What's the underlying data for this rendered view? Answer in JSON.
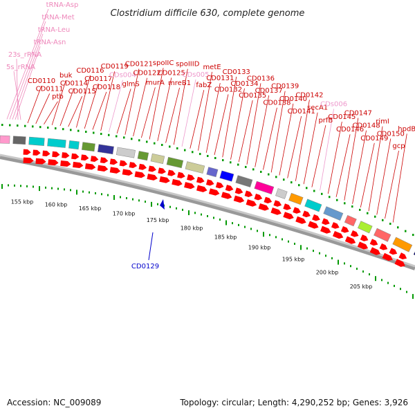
{
  "title": "Clostridium difficile 630, complete genome",
  "footer": {
    "accession": "Accession: NC_009089",
    "summary": "Topology: circular; Length: 4,290,252 bp; Genes: 3,926"
  },
  "colors": {
    "cds": "#ff0000",
    "cds_label": "#cc0000",
    "rna_label": "#ee88bb",
    "pseudo_label": "#ee99cc",
    "minus_label": "#0000cc",
    "scale_tick": "#009900"
  },
  "kbp_labels": [
    "155 kbp",
    "160 kbp",
    "165 kbp",
    "170 kbp",
    "175 kbp",
    "180 kbp",
    "185 kbp",
    "190 kbp",
    "195 kbp",
    "200 kbp",
    "205 kbp"
  ],
  "gene_labels": [
    {
      "text": "tRNA-Asp",
      "kind": "rna"
    },
    {
      "text": "tRNA-Met",
      "kind": "rna"
    },
    {
      "text": "tRNA-Leu",
      "kind": "rna"
    },
    {
      "text": "tRNA-Asn",
      "kind": "rna"
    },
    {
      "text": "23s_rRNA",
      "kind": "rna"
    },
    {
      "text": "5s_rRNA",
      "kind": "rna"
    },
    {
      "text": "CD0110",
      "kind": "cds"
    },
    {
      "text": "CD0111",
      "kind": "cds"
    },
    {
      "text": "ptb",
      "kind": "cds"
    },
    {
      "text": "buk",
      "kind": "cds"
    },
    {
      "text": "CD0114",
      "kind": "cds"
    },
    {
      "text": "CD0115",
      "kind": "cds"
    },
    {
      "text": "CD0116",
      "kind": "cds"
    },
    {
      "text": "CD0117",
      "kind": "cds"
    },
    {
      "text": "CD0118",
      "kind": "cds"
    },
    {
      "text": "CD0119",
      "kind": "cds"
    },
    {
      "text": "CDs004",
      "kind": "pseudo"
    },
    {
      "text": "glmS",
      "kind": "cds"
    },
    {
      "text": "CD0121",
      "kind": "cds"
    },
    {
      "text": "CD0122",
      "kind": "cds"
    },
    {
      "text": "murA",
      "kind": "cds"
    },
    {
      "text": "spoIIC",
      "kind": "cds"
    },
    {
      "text": "CD0125",
      "kind": "cds"
    },
    {
      "text": "mreB1",
      "kind": "cds"
    },
    {
      "text": "spoIIID",
      "kind": "cds"
    },
    {
      "text": "CDs005",
      "kind": "pseudo"
    },
    {
      "text": "fabZ",
      "kind": "cds"
    },
    {
      "text": "metE",
      "kind": "cds"
    },
    {
      "text": "CD0131",
      "kind": "cds"
    },
    {
      "text": "CD0132",
      "kind": "cds"
    },
    {
      "text": "CD0133",
      "kind": "cds"
    },
    {
      "text": "CD0134",
      "kind": "cds"
    },
    {
      "text": "CD0135",
      "kind": "cds"
    },
    {
      "text": "CD0136",
      "kind": "cds"
    },
    {
      "text": "CD0137",
      "kind": "cds"
    },
    {
      "text": "CD0138",
      "kind": "cds"
    },
    {
      "text": "CD0139",
      "kind": "cds"
    },
    {
      "text": "CD0140",
      "kind": "cds"
    },
    {
      "text": "CD0141",
      "kind": "cds"
    },
    {
      "text": "CD0142",
      "kind": "cds"
    },
    {
      "text": "secA1",
      "kind": "cds"
    },
    {
      "text": "prfB",
      "kind": "cds"
    },
    {
      "text": "CDs006",
      "kind": "pseudo"
    },
    {
      "text": "CD0145",
      "kind": "cds"
    },
    {
      "text": "CD0146",
      "kind": "cds"
    },
    {
      "text": "CD0147",
      "kind": "cds"
    },
    {
      "text": "CD0148",
      "kind": "cds"
    },
    {
      "text": "CD0149",
      "kind": "cds"
    },
    {
      "text": "rimI",
      "kind": "cds"
    },
    {
      "text": "CD0150",
      "kind": "cds"
    },
    {
      "text": "gcp",
      "kind": "cds"
    },
    {
      "text": "hpdB",
      "kind": "cds"
    },
    {
      "text": "CD0129",
      "kind": "minus"
    }
  ],
  "cog_colors": [
    "#ff99cc",
    "#666666",
    "#00cccc",
    "#00cccc",
    "#00cccc",
    "#669933",
    "#333399",
    "#cccccc",
    "#669933",
    "#cccc99",
    "#669933",
    "#cccc99",
    "#6666cc",
    "#0000ff",
    "#777777",
    "#ff0099",
    "#cccccc",
    "#ff9900",
    "#00cccc",
    "#6699cc",
    "#ff6666",
    "#aaee33",
    "#ff6666",
    "#ff9900",
    "#000077",
    "#777777",
    "#cccc99",
    "#cccc99",
    "#00cccc",
    "#cccc99",
    "#cccccc"
  ]
}
